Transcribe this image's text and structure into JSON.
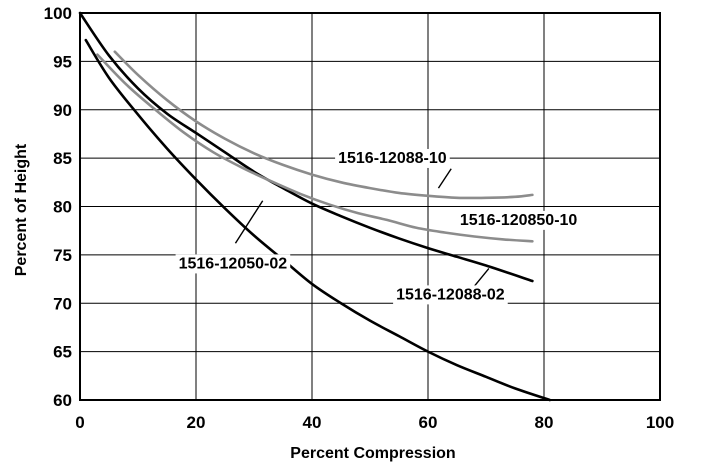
{
  "chart_data": {
    "type": "line",
    "title": "",
    "xlabel": "Percent Compression",
    "ylabel": "Percent of Height",
    "xlim": [
      0,
      100
    ],
    "ylim": [
      60,
      100
    ],
    "xticks": [
      "0",
      "20",
      "40",
      "60",
      "80",
      "100"
    ],
    "yticks": [
      "100",
      "95",
      "90",
      "85",
      "80",
      "75",
      "70",
      "65",
      "60"
    ],
    "grid": true,
    "legend": "inline-callouts",
    "series": [
      {
        "name": "1516-12050-02",
        "color": "#000000",
        "x": [
          1,
          5,
          10,
          15,
          20,
          25,
          30,
          35,
          40,
          45,
          50,
          55,
          60,
          65,
          70,
          75,
          81
        ],
        "y": [
          97.2,
          93.3,
          89.5,
          86,
          82.8,
          79.8,
          77,
          74.5,
          72,
          70,
          68.2,
          66.6,
          65,
          63.6,
          62.4,
          61.2,
          60
        ]
      },
      {
        "name": "1516-12088-02",
        "color": "#000000",
        "x": [
          0,
          5,
          10,
          15,
          20,
          25,
          30,
          35,
          40,
          45,
          50,
          55,
          60,
          65,
          70,
          78
        ],
        "y": [
          100,
          95.6,
          92.2,
          89.6,
          87.6,
          85.6,
          83.6,
          81.9,
          80.3,
          79,
          77.8,
          76.7,
          75.7,
          74.8,
          73.9,
          72.3
        ]
      },
      {
        "name": "1516-120850-10",
        "color": "#8c8c8c",
        "x": [
          3,
          8,
          13,
          18,
          23,
          28,
          33,
          38,
          43,
          48,
          53,
          58,
          63,
          68,
          73,
          78
        ],
        "y": [
          95.7,
          92.6,
          90,
          87.6,
          85.6,
          84,
          82.6,
          81.3,
          80.2,
          79.3,
          78.6,
          77.8,
          77.3,
          76.9,
          76.6,
          76.4
        ]
      },
      {
        "name": "1516-12088-10",
        "color": "#8c8c8c",
        "x": [
          6,
          10,
          15,
          20,
          25,
          30,
          35,
          40,
          45,
          50,
          55,
          60,
          65,
          70,
          75,
          78
        ],
        "y": [
          96,
          93.6,
          91,
          88.8,
          87,
          85.5,
          84.3,
          83.3,
          82.5,
          81.9,
          81.4,
          81.1,
          80.9,
          80.9,
          81,
          81.2
        ]
      }
    ],
    "annotations": [
      {
        "series": "1516-12050-02",
        "label_x": 17,
        "label_y": 73.6,
        "pointer": [
          [
            26.8,
            76.2
          ],
          [
            31.5,
            80.6
          ]
        ]
      },
      {
        "series": "1516-12088-02",
        "label_x": 54.5,
        "label_y": 70.4,
        "pointer": [
          [
            67.5,
            71.4
          ],
          [
            70.5,
            73.6
          ]
        ]
      },
      {
        "series": "1516-120850-10",
        "label_x": 65.5,
        "label_y": 78.1,
        "pointer": []
      },
      {
        "series": "1516-12088-10",
        "label_x": 44.5,
        "label_y": 84.5,
        "pointer": [
          [
            61.8,
            81.9
          ],
          [
            64,
            83.9
          ]
        ]
      }
    ]
  }
}
